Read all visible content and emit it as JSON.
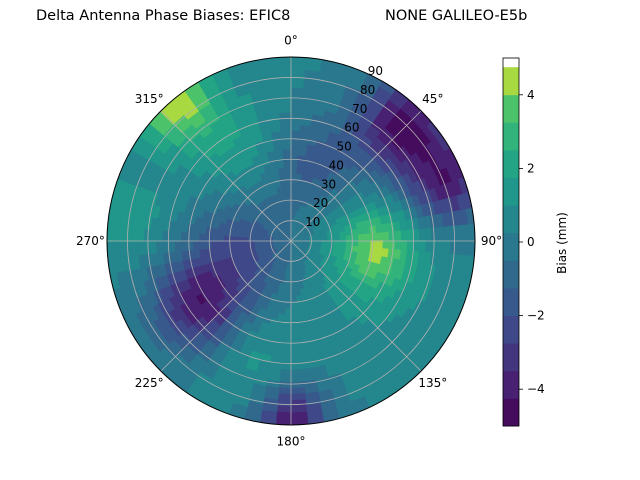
{
  "title_left": "Delta Antenna Phase Biases: EFIC8",
  "title_right": "NONE GALILEO-E5b",
  "chart_data": {
    "type": "heatmap",
    "projection": "polar",
    "theta_zero_location": "top",
    "theta_direction": "clockwise",
    "theta_tick_labels": [
      "0°",
      "45°",
      "90°",
      "135°",
      "180°",
      "225°",
      "270°",
      "315°"
    ],
    "theta_tick_degrees": [
      0,
      45,
      90,
      135,
      180,
      225,
      270,
      315
    ],
    "radial_tick_labels": [
      "10",
      "20",
      "30",
      "40",
      "50",
      "60",
      "70",
      "80",
      "90"
    ],
    "radial_ticks": [
      10,
      20,
      30,
      40,
      50,
      60,
      70,
      80,
      90
    ],
    "rlim": [
      0,
      90
    ],
    "grid": true,
    "colorbar": {
      "label": "Bias (mm)",
      "tick_labels": [
        "−4",
        "−2",
        "0",
        "2",
        "4"
      ],
      "ticks": [
        -4,
        -2,
        0,
        2,
        4
      ],
      "range": [
        -5,
        5
      ],
      "level_step": 0.75,
      "colormap": "viridis"
    },
    "features": [
      {
        "azimuth_deg": 95,
        "zenith_deg": 42,
        "bias_mm": 3.4,
        "extent_deg": 14
      },
      {
        "azimuth_deg": 115,
        "zenith_deg": 45,
        "bias_mm": 1.3,
        "extent_deg": 22
      },
      {
        "azimuth_deg": 45,
        "zenith_deg": 78,
        "bias_mm": -4.6,
        "extent_deg": 16
      },
      {
        "azimuth_deg": 70,
        "zenith_deg": 82,
        "bias_mm": -3.8,
        "extent_deg": 14
      },
      {
        "azimuth_deg": 320,
        "zenith_deg": 88,
        "bias_mm": 4.4,
        "extent_deg": 14
      },
      {
        "azimuth_deg": 235,
        "zenith_deg": 55,
        "bias_mm": -3.9,
        "extent_deg": 16
      },
      {
        "azimuth_deg": 180,
        "zenith_deg": 88,
        "bias_mm": -4.0,
        "extent_deg": 12
      },
      {
        "azimuth_deg": 260,
        "zenith_deg": 25,
        "bias_mm": -2.0,
        "extent_deg": 18
      },
      {
        "azimuth_deg": 330,
        "zenith_deg": 55,
        "bias_mm": 1.7,
        "extent_deg": 18
      },
      {
        "azimuth_deg": 15,
        "zenith_deg": 40,
        "bias_mm": -1.6,
        "extent_deg": 16
      },
      {
        "azimuth_deg": 200,
        "zenith_deg": 60,
        "bias_mm": 1.4,
        "extent_deg": 16
      },
      {
        "azimuth_deg": 280,
        "zenith_deg": 80,
        "bias_mm": 1.6,
        "extent_deg": 14
      }
    ]
  }
}
